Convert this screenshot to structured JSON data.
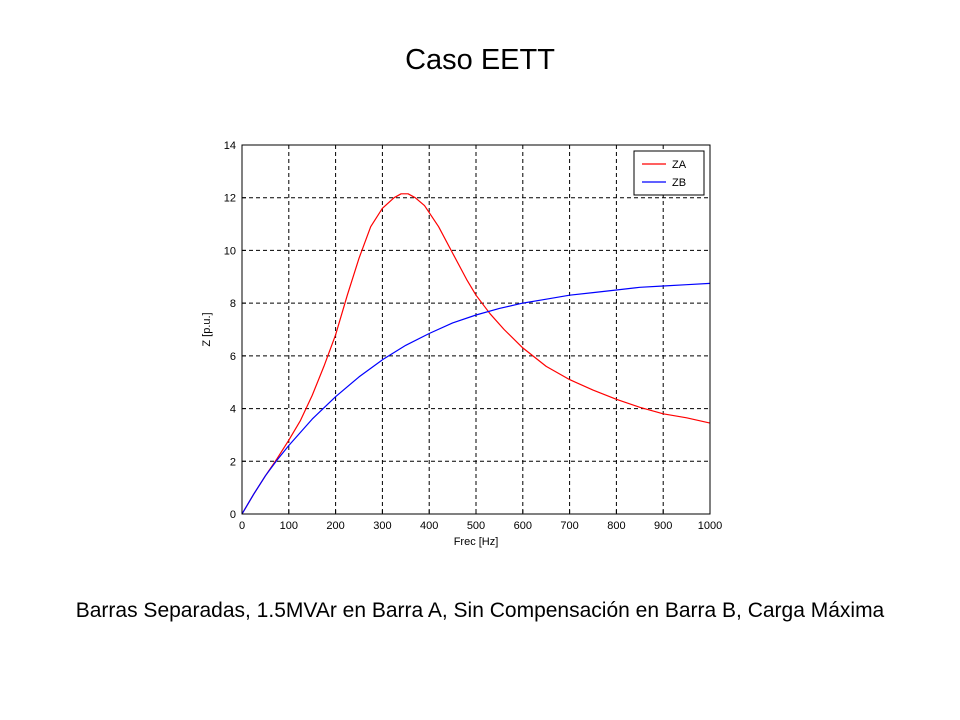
{
  "slide": {
    "title": "Caso EETT",
    "caption": "Barras Separadas, 1.5MVAr en Barra A, Sin Compensación en Barra B, Carga Máxima"
  },
  "chart_data": {
    "type": "line",
    "title": "",
    "xlabel": "Frec [Hz]",
    "ylabel": "Z [p.u.]",
    "xlim": [
      0,
      1000
    ],
    "ylim": [
      0,
      14
    ],
    "xticks": [
      0,
      100,
      200,
      300,
      400,
      500,
      600,
      700,
      800,
      900,
      1000
    ],
    "yticks": [
      0,
      2,
      4,
      6,
      8,
      10,
      12,
      14
    ],
    "grid": true,
    "grid_style": "dashed",
    "legend_position": "top-right",
    "series": [
      {
        "name": "ZA",
        "color": "#ff0000",
        "x": [
          0,
          25,
          50,
          75,
          100,
          125,
          150,
          175,
          200,
          225,
          250,
          275,
          300,
          325,
          340,
          355,
          370,
          390,
          420,
          450,
          480,
          500,
          530,
          560,
          600,
          650,
          700,
          750,
          800,
          850,
          900,
          950,
          1000
        ],
        "y": [
          0,
          0.75,
          1.45,
          2.1,
          2.8,
          3.55,
          4.5,
          5.6,
          6.8,
          8.3,
          9.7,
          10.9,
          11.6,
          12.0,
          12.15,
          12.15,
          12.0,
          11.7,
          10.9,
          9.9,
          8.9,
          8.3,
          7.6,
          7.0,
          6.3,
          5.6,
          5.1,
          4.7,
          4.35,
          4.05,
          3.8,
          3.65,
          3.45
        ]
      },
      {
        "name": "ZB",
        "color": "#0000ff",
        "x": [
          0,
          25,
          50,
          75,
          100,
          150,
          200,
          250,
          300,
          350,
          400,
          450,
          500,
          550,
          600,
          650,
          700,
          750,
          800,
          850,
          900,
          950,
          1000
        ],
        "y": [
          0,
          0.75,
          1.45,
          2.05,
          2.6,
          3.6,
          4.45,
          5.2,
          5.85,
          6.4,
          6.85,
          7.25,
          7.55,
          7.8,
          8.0,
          8.15,
          8.3,
          8.4,
          8.5,
          8.6,
          8.65,
          8.7,
          8.75
        ]
      }
    ]
  }
}
